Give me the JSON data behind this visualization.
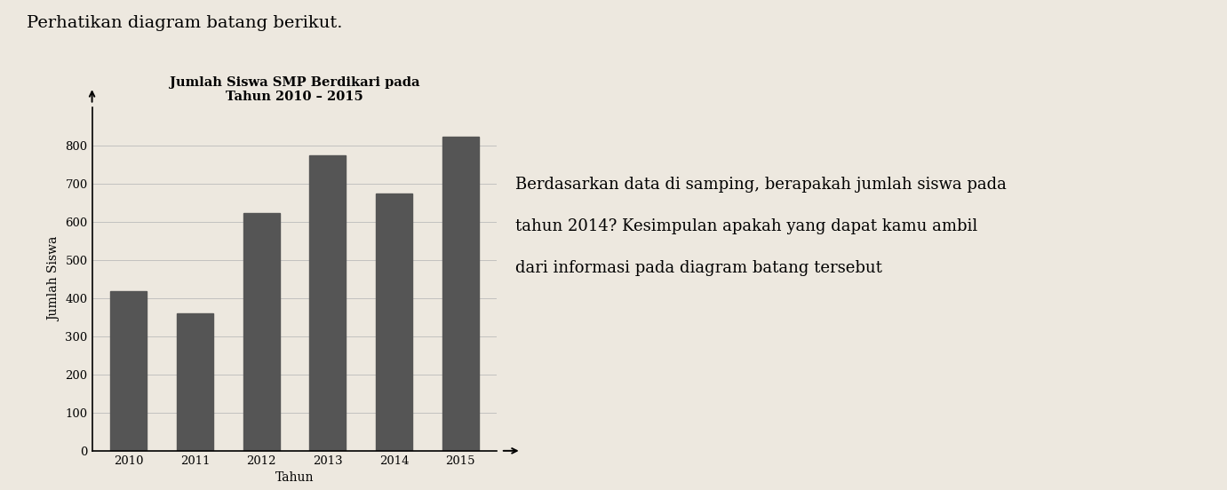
{
  "title_line1": "Jumlah Siswa SMP Berdikari pada",
  "title_line2": "Tahun 2010 – 2015",
  "xlabel": "Tahun",
  "ylabel": "Jumlah Siswa",
  "years": [
    2010,
    2011,
    2012,
    2013,
    2014,
    2015
  ],
  "values": [
    420,
    360,
    625,
    775,
    675,
    825
  ],
  "bar_color": "#555555",
  "yticks": [
    0,
    100,
    200,
    300,
    400,
    500,
    600,
    700,
    800
  ],
  "ylim": [
    0,
    900
  ],
  "header_text": "Perhatikan diagram batang berikut.",
  "side_text_line1": "Berdasarkan data di samping, berapakah jumlah siswa pada",
  "side_text_line2": "tahun 2014? Kesimpulan apakah yang dapat kamu ambil",
  "side_text_line3": "dari informasi pada diagram batang tersebut",
  "bg_color": "#ede8df",
  "title_fontsize": 10.5,
  "axis_label_fontsize": 10,
  "tick_fontsize": 9.5,
  "header_fontsize": 14,
  "side_text_fontsize": 13,
  "bar_width": 0.55
}
